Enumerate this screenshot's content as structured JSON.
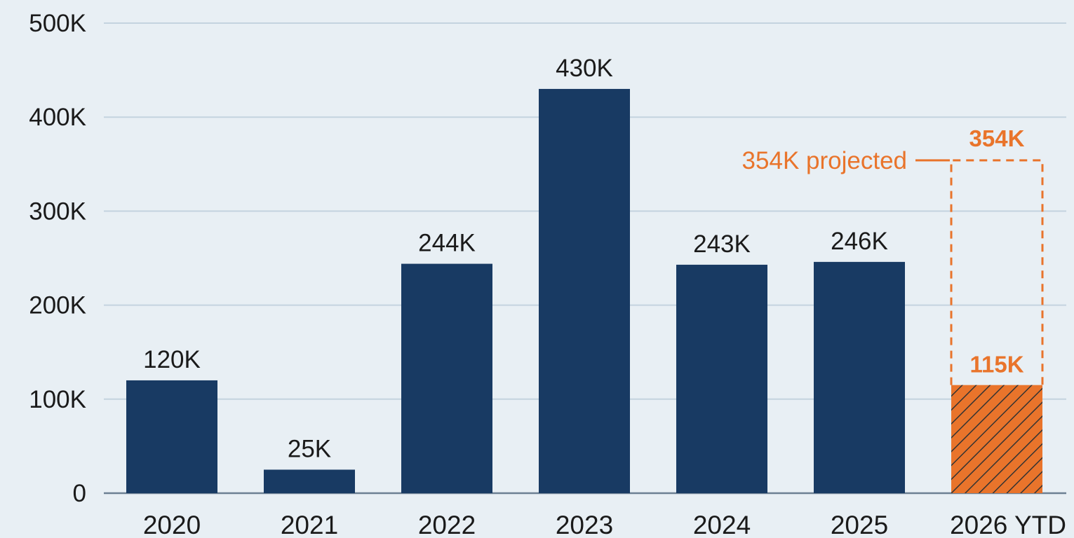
{
  "chart_data": {
    "type": "bar",
    "categories": [
      "2020",
      "2021",
      "2022",
      "2023",
      "2024",
      "2025",
      "2026 YTD"
    ],
    "values": [
      120000,
      25000,
      244000,
      430000,
      243000,
      246000,
      115000
    ],
    "value_labels": [
      "120K",
      "25K",
      "244K",
      "430K",
      "243K",
      "246K",
      "115K"
    ],
    "projected": {
      "category": "2026 YTD",
      "value": 354000,
      "value_label": "354K",
      "annotation": "354K projected"
    },
    "y_ticks": [
      0,
      100000,
      200000,
      300000,
      400000,
      500000
    ],
    "y_tick_labels": [
      "0",
      "100K",
      "200K",
      "300K",
      "400K",
      "500K"
    ],
    "ylim": [
      0,
      500000
    ],
    "grid": true,
    "title": "",
    "xlabel": "",
    "ylabel": ""
  },
  "colors": {
    "background": "#e8eff4",
    "bar": "#183a63",
    "highlight": "#e9742b",
    "hatch": "#333333",
    "grid": "#c4d3df",
    "axis": "#6d8093",
    "text": "#1a1a1a"
  }
}
